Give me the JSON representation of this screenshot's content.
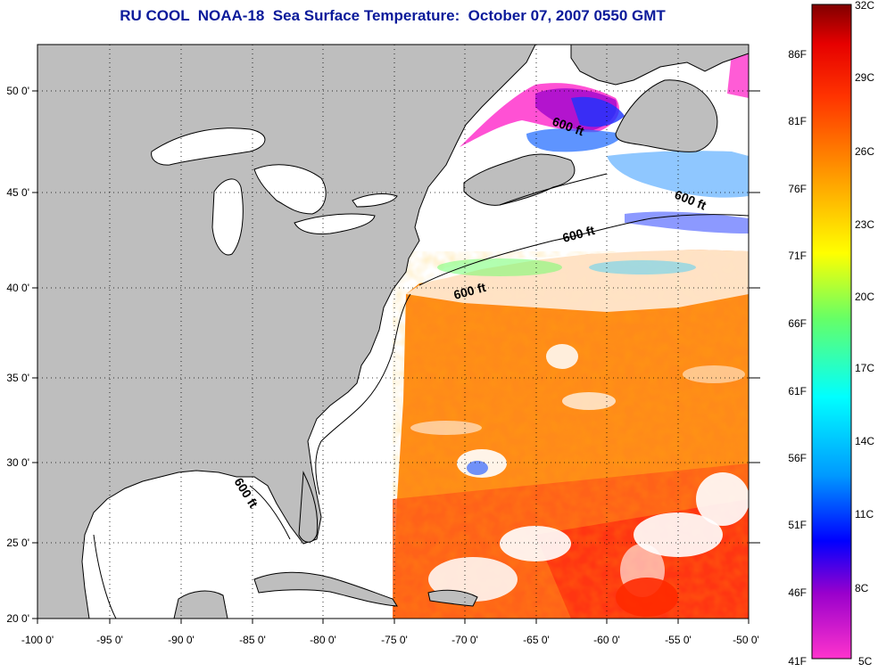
{
  "title": "RU COOL  NOAA-18  Sea Surface Temperature:  October 07, 2007 0550 GMT",
  "map": {
    "lon_ticks": [
      "-100 0'",
      "-95 0'",
      "-90 0'",
      "-85 0'",
      "-80 0'",
      "-75 0'",
      "-70 0'",
      "-65 0'",
      "-60 0'",
      "-55 0'",
      "-50 0'"
    ],
    "lat_ticks": [
      "20 0'",
      "25 0'",
      "30 0'",
      "35 0'",
      "40 0'",
      "45 0'",
      "50 0'"
    ],
    "lon_range": [
      -100,
      -50
    ],
    "lat_range": [
      20,
      52
    ],
    "grid": "dotted",
    "land_color": "#bebebe",
    "no_data_color": "#ffffff",
    "contour_labels": [
      "600 ft",
      "600 ft",
      "600 ft",
      "600 ft",
      "600 ft"
    ]
  },
  "colorbar": {
    "celsius_labels": [
      "32C",
      "29C",
      "26C",
      "23C",
      "20C",
      "17C",
      "14C",
      "11C",
      "8C",
      "5C"
    ],
    "fahrenheit_labels": [
      "86F",
      "81F",
      "76F",
      "71F",
      "66F",
      "61F",
      "56F",
      "51F",
      "46F",
      "41F"
    ],
    "range_c": [
      5,
      32
    ],
    "colors": [
      "#ff33cc",
      "#9900cc",
      "#0000ff",
      "#0099ff",
      "#00ffff",
      "#66ff66",
      "#ffff00",
      "#ff9900",
      "#ff3300",
      "#cc0000",
      "#800000"
    ]
  }
}
